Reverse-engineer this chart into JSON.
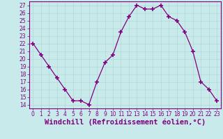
{
  "x": [
    0,
    1,
    2,
    3,
    4,
    5,
    6,
    7,
    8,
    9,
    10,
    11,
    12,
    13,
    14,
    15,
    16,
    17,
    18,
    19,
    20,
    21,
    22,
    23
  ],
  "y": [
    22,
    20.5,
    19,
    17.5,
    16,
    14.5,
    14.5,
    14,
    17,
    19.5,
    20.5,
    23.5,
    25.5,
    27,
    26.5,
    26.5,
    27,
    25.5,
    25,
    23.5,
    21,
    17,
    16,
    14.5
  ],
  "line_color": "#800080",
  "marker_color": "#800080",
  "bg_color": "#c8eaea",
  "grid_color": "#b0d8d8",
  "xlabel": "Windchill (Refroidissement éolien,°C)",
  "ylim": [
    13.5,
    27.5
  ],
  "xlim": [
    -0.5,
    23.5
  ],
  "yticks": [
    14,
    15,
    16,
    17,
    18,
    19,
    20,
    21,
    22,
    23,
    24,
    25,
    26,
    27
  ],
  "xticks": [
    0,
    1,
    2,
    3,
    4,
    5,
    6,
    7,
    8,
    9,
    10,
    11,
    12,
    13,
    14,
    15,
    16,
    17,
    18,
    19,
    20,
    21,
    22,
    23
  ],
  "tick_fontsize": 5.5,
  "label_fontsize": 7.5
}
